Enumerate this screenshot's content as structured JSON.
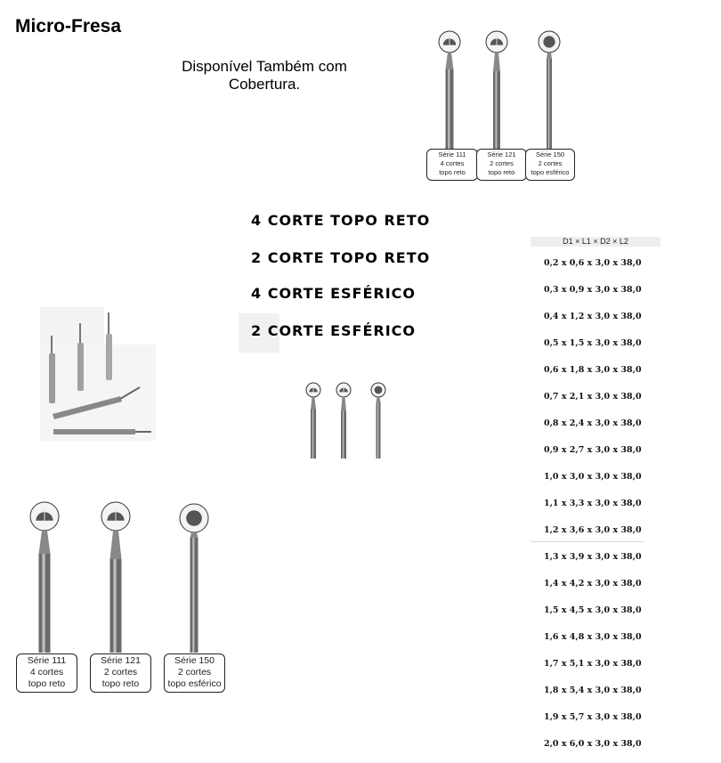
{
  "title": "Micro-Fresa",
  "subtitle": "Disponível Também com Cobertura.",
  "headings": [
    "4 CORTE TOPO RETO",
    "2 CORTE TOPO RETO",
    "4 CORTE ESFÉRICO",
    "2 CORTE ESFÉRICO"
  ],
  "dimensions_header": "D1 × L1 × D2 × L2",
  "sizes": [
    "0,2 x 0,6 x 3,0 x 38,0",
    "0,3 x 0,9 x 3,0 x 38,0",
    "0,4 x 1,2 x 3,0 x 38,0",
    "0,5 x 1,5 x 3,0 x 38,0",
    "0,6 x 1,8 x 3,0 x 38,0",
    "0,7 x 2,1 x 3,0 x 38,0",
    "0,8 x 2,4 x 3,0 x 38,0",
    "0,9 x 2,7 x 3,0 x 38,0",
    "1,0 x 3,0 x 3,0 x 38,0",
    "1,1 x 3,3 x 3,0 x 38,0",
    "1,2 x 3,6 x 3,0 x 38,0",
    "1,3 x 3,9 x 3,0 x 38,0",
    "1,4 x 4,2 x 3,0 x 38,0",
    "1,5 x 4,5 x 3,0 x 38,0",
    "1,6 x 4,8 x 3,0 x 38,0",
    "1,7 x 5,1 x 3,0 x 38,0",
    "1,8 x 5,4 x 3,0 x 38,0",
    "1,9 x 5,7 x 3,0 x 38,0",
    "2,0 x 6,0 x 3,0 x 38,0"
  ],
  "series": [
    {
      "name": "Série 111",
      "cuts": "4 cortes",
      "type": "topo reto"
    },
    {
      "name": "Série 121",
      "cuts": "2 cortes",
      "type": "topo reto"
    },
    {
      "name": "Série 150",
      "cuts": "2 cortes",
      "type": "topo esférico"
    }
  ]
}
